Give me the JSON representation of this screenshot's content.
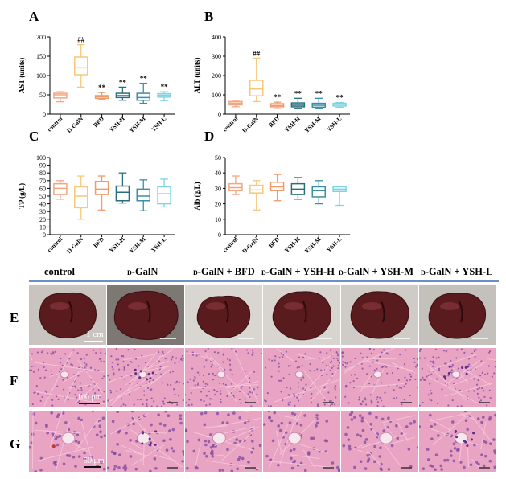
{
  "panels": {
    "A": {
      "letter": "A",
      "ylabel": "AST (units)",
      "ylim": [
        0,
        200
      ],
      "ticks": [
        0,
        50,
        100,
        150,
        200
      ]
    },
    "B": {
      "letter": "B",
      "ylabel": "ALT (units)",
      "ylim": [
        0,
        400
      ],
      "ticks": [
        0,
        100,
        200,
        300,
        400
      ]
    },
    "C": {
      "letter": "C",
      "ylabel": "TP (g/L)",
      "ylim": [
        0,
        100
      ],
      "ticks": [
        0,
        10,
        20,
        30,
        40,
        50,
        60,
        70,
        80,
        90,
        100
      ]
    },
    "D": {
      "letter": "D",
      "ylabel": "Alb (g/L)",
      "ylim": [
        0,
        50
      ],
      "ticks": [
        0,
        10,
        20,
        30,
        40,
        50
      ]
    }
  },
  "categories": [
    "control",
    "D-GalN",
    "BFD",
    "YSH-H",
    "YSH-M",
    "YSH-L"
  ],
  "colors": [
    "#f4a582",
    "#f6c87a",
    "#f19a6b",
    "#2a6f7f",
    "#3d8fa6",
    "#7fd3e0"
  ],
  "chart_data": [
    {
      "type": "box",
      "panel": "A",
      "ylabel": "AST (units)",
      "ylim": [
        0,
        200
      ],
      "categories": [
        "control",
        "D-GalN",
        "BFD",
        "YSH-H",
        "YSH-M",
        "YSH-L"
      ],
      "boxes": [
        [
          32,
          42,
          50,
          54,
          58
        ],
        [
          70,
          102,
          120,
          148,
          180
        ],
        [
          38,
          41,
          45,
          48,
          56
        ],
        [
          36,
          43,
          48,
          54,
          70
        ],
        [
          28,
          36,
          43,
          54,
          80
        ],
        [
          35,
          44,
          49,
          53,
          58
        ]
      ],
      "annotations": [
        "",
        "##",
        "**",
        "**",
        "**",
        "**"
      ]
    },
    {
      "type": "box",
      "panel": "B",
      "ylabel": "ALT (units)",
      "ylim": [
        0,
        400
      ],
      "categories": [
        "control",
        "D-GalN",
        "BFD",
        "YSH-H",
        "YSH-M",
        "YSH-L"
      ],
      "boxes": [
        [
          38,
          48,
          57,
          65,
          72
        ],
        [
          65,
          95,
          130,
          175,
          290
        ],
        [
          30,
          38,
          45,
          54,
          62
        ],
        [
          28,
          38,
          46,
          58,
          82
        ],
        [
          28,
          36,
          46,
          56,
          82
        ],
        [
          35,
          42,
          50,
          56,
          60
        ]
      ],
      "annotations": [
        "",
        "##",
        "**",
        "**",
        "**",
        "**"
      ]
    },
    {
      "type": "box",
      "panel": "C",
      "ylabel": "TP (g/L)",
      "ylim": [
        0,
        100
      ],
      "categories": [
        "control",
        "D-GalN",
        "BFD",
        "YSH-H",
        "YSH-M",
        "YSH-L"
      ],
      "boxes": [
        [
          46,
          52,
          60,
          66,
          70
        ],
        [
          20,
          35,
          50,
          62,
          76
        ],
        [
          32,
          52,
          59,
          69,
          76
        ],
        [
          41,
          44,
          55,
          63,
          80
        ],
        [
          31,
          44,
          50,
          59,
          71
        ],
        [
          36,
          40,
          53,
          62,
          72
        ]
      ],
      "annotations": [
        "",
        "",
        "",
        "",
        "",
        ""
      ]
    },
    {
      "type": "box",
      "panel": "D",
      "ylabel": "Alb (g/L)",
      "ylim": [
        0,
        50
      ],
      "categories": [
        "control",
        "D-GalN",
        "BFD",
        "YSH-H",
        "YSH-M",
        "YSH-L"
      ],
      "boxes": [
        [
          26,
          28.5,
          30.5,
          33,
          38
        ],
        [
          16,
          27,
          29,
          32,
          35
        ],
        [
          22,
          28.5,
          31,
          34,
          39
        ],
        [
          23,
          26,
          29.5,
          33,
          37
        ],
        [
          20,
          24.5,
          28.5,
          31,
          35
        ],
        [
          19,
          28,
          29.5,
          31,
          31
        ]
      ],
      "annotations": [
        "",
        "",
        "",
        "",
        "",
        ""
      ]
    }
  ],
  "headers": [
    {
      "pre": "",
      "sc": "",
      "main": "control"
    },
    {
      "pre": "",
      "sc": "D",
      "main": "-GalN"
    },
    {
      "pre": "",
      "sc": "D",
      "main": "-GalN + BFD"
    },
    {
      "pre": "",
      "sc": "D",
      "main": "-GalN + YSH-H"
    },
    {
      "pre": "",
      "sc": "D",
      "main": "-GalN + YSH-M"
    },
    {
      "pre": "",
      "sc": "D",
      "main": "-GalN + YSH-L"
    }
  ],
  "rows": {
    "E": {
      "letter": "E",
      "scale": "1 cm"
    },
    "F": {
      "letter": "F",
      "scale": "100 μm"
    },
    "G": {
      "letter": "G",
      "scale": "50 μm"
    }
  },
  "theme": {
    "separator": "#6d8fc9",
    "liver": "#5a1b1f",
    "he_bg": "#e9a3c3"
  }
}
